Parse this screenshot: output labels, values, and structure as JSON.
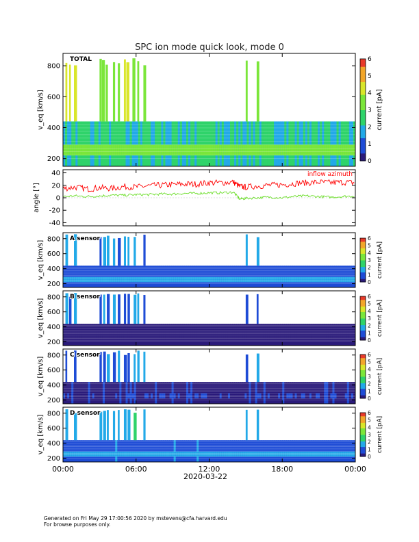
{
  "title": "SPC ion mode quick look, mode 0",
  "footer": {
    "line1": "Generated on Fri May 29 17:00:56 2020 by mstevens@cfa.harvard.edu",
    "line2": "For browse purposes only."
  },
  "colors": {
    "velocity_bands": [
      "#2a1a7a",
      "#1e4cd6",
      "#22a9e8",
      "#2fd36a",
      "#7be63a",
      "#d9e62a",
      "#f2a62a",
      "#e83a2a"
    ],
    "azimuth_line": "#ff0000",
    "elevation_line": "#66dd22",
    "axis": "#000000"
  },
  "chart_data": [
    {
      "type": "heatmap",
      "panel_label": "TOTAL",
      "ylabel": "v_eq [km/s]",
      "yticks": [
        "200",
        "400",
        "600",
        "800"
      ],
      "ylim": [
        150,
        880
      ],
      "colorbar": {
        "label": "current [pA]",
        "ticks": [
          "0",
          "1",
          "2",
          "3",
          "4",
          "5",
          "6"
        ],
        "range": [
          0,
          6
        ]
      },
      "background_level": 2.2,
      "core_level": 3.3,
      "beam_columns_hours": [
        0.2,
        0.5,
        0.9,
        3.0,
        3.2,
        3.5,
        4.1,
        4.5,
        5.0,
        5.2,
        5.7,
        6.1,
        6.6,
        15.0,
        15.9
      ],
      "beam_level": 3.6
    },
    {
      "type": "line",
      "ylabel": "angle [°]",
      "yticks": [
        "-40",
        "-20",
        "0",
        "20",
        "40"
      ],
      "ylim": [
        -45,
        45
      ],
      "annotation": "inflow azimuth",
      "series": [
        {
          "name": "inflow azimuth",
          "x": [
            0,
            1,
            2,
            3,
            4,
            5,
            6,
            7,
            8,
            9,
            10,
            11,
            12,
            13,
            14,
            14.5,
            15,
            16,
            17,
            18,
            19,
            20,
            21,
            22,
            23,
            24
          ],
          "values": [
            15,
            17,
            14,
            16,
            15,
            18,
            17,
            19,
            20,
            21,
            22,
            22,
            24,
            24,
            25,
            18,
            17,
            19,
            20,
            21,
            23,
            24,
            25,
            24,
            25,
            24
          ]
        },
        {
          "name": "",
          "x": [
            0,
            1,
            2,
            3,
            4,
            5,
            6,
            7,
            8,
            9,
            10,
            11,
            12,
            13,
            14,
            14.5,
            15,
            16,
            17,
            18,
            19,
            20,
            21,
            22,
            23,
            24
          ],
          "values": [
            2,
            3,
            2,
            3,
            4,
            4,
            5,
            5,
            6,
            6,
            7,
            7,
            8,
            8,
            9,
            -2,
            -1,
            0,
            1,
            0,
            2,
            3,
            2,
            1,
            2,
            3
          ]
        }
      ]
    },
    {
      "type": "heatmap",
      "panel_label": "A sensor",
      "ylabel": "v_eq [km/s]",
      "yticks": [
        "200",
        "400",
        "600",
        "800"
      ],
      "ylim": [
        150,
        880
      ],
      "colorbar": {
        "label": "current [pA]",
        "ticks": [
          "0",
          "1",
          "2",
          "3",
          "4",
          "5",
          "6"
        ],
        "range": [
          0,
          6
        ]
      },
      "background_level": 0.8,
      "core_level": 1.8,
      "beam_columns_hours": [
        0.2,
        0.9,
        3.0,
        3.3,
        3.6,
        4.1,
        4.5,
        5.0,
        5.3,
        5.8,
        6.6,
        15.0,
        15.9
      ],
      "beam_level": 1.6
    },
    {
      "type": "heatmap",
      "panel_label": "B sensor",
      "ylabel": "v_eq [km/s]",
      "yticks": [
        "200",
        "400",
        "600",
        "800"
      ],
      "ylim": [
        150,
        880
      ],
      "colorbar": {
        "label": "current [pA]",
        "ticks": [
          "0",
          "1",
          "2",
          "3",
          "4",
          "5",
          "6"
        ],
        "range": [
          0,
          6
        ]
      },
      "background_level": 0.1,
      "core_level": 0.2,
      "beam_columns_hours": [
        0.2,
        0.5,
        0.9,
        3.0,
        3.3,
        3.6,
        4.1,
        4.5,
        5.0,
        5.3,
        5.8,
        6.1,
        6.6,
        15.0,
        15.9
      ],
      "beam_level": 1.2
    },
    {
      "type": "heatmap",
      "panel_label": "C sensor",
      "ylabel": "v_eq [km/s]",
      "yticks": [
        "200",
        "400",
        "600",
        "800"
      ],
      "ylim": [
        150,
        880
      ],
      "colorbar": {
        "label": "current [pA]",
        "ticks": [
          "0",
          "1",
          "2",
          "3",
          "4",
          "5",
          "6"
        ],
        "range": [
          0,
          6
        ]
      },
      "background_level": 0.2,
      "core_level": 0.4,
      "beam_columns_hours": [
        0.2,
        0.9,
        3.0,
        3.3,
        3.6,
        4.1,
        4.5,
        5.0,
        5.3,
        5.8,
        6.1,
        6.6,
        15.0,
        15.9
      ],
      "beam_level": 1.3
    },
    {
      "type": "heatmap",
      "panel_label": "D sensor",
      "ylabel": "v_eq [km/s]",
      "yticks": [
        "200",
        "400",
        "600",
        "800"
      ],
      "ylim": [
        150,
        880
      ],
      "colorbar": {
        "label": "current [pA]",
        "ticks": [
          "0",
          "1",
          "2",
          "3",
          "4",
          "5",
          "6"
        ],
        "range": [
          0,
          6
        ]
      },
      "background_level": 1.0,
      "core_level": 1.9,
      "beam_columns_hours": [
        0.2,
        0.9,
        3.0,
        3.3,
        3.6,
        4.1,
        4.5,
        5.0,
        5.3,
        5.8,
        6.6,
        15.0,
        15.9
      ],
      "beam_level": 1.7
    }
  ],
  "xaxis": {
    "ticks": [
      "00:00",
      "06:00",
      "12:00",
      "18:00",
      "00:00"
    ],
    "label": "2020-03-22",
    "range_hours": [
      0,
      24
    ]
  }
}
